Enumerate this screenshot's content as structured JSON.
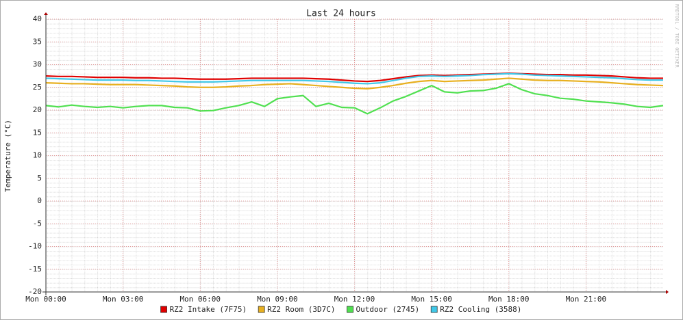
{
  "chart_data": {
    "type": "line",
    "title": "Last 24 hours",
    "y_label": "Temperature (°C)",
    "watermark": "RRDTOOL / TOBI OETIKER",
    "x": [
      0,
      0.5,
      1,
      1.5,
      2,
      2.5,
      3,
      3.5,
      4,
      4.5,
      5,
      5.5,
      6,
      6.5,
      7,
      7.5,
      8,
      8.5,
      9,
      9.5,
      10,
      10.5,
      11,
      11.5,
      12,
      12.5,
      13,
      13.5,
      14,
      14.5,
      15,
      15.5,
      16,
      16.5,
      17,
      17.5,
      18,
      18.5,
      19,
      19.5,
      20,
      20.5,
      21,
      21.5,
      22,
      22.5,
      23,
      23.5,
      24
    ],
    "xlim": [
      0,
      24
    ],
    "xticks": [
      {
        "value": 0,
        "label": "Mon 00:00"
      },
      {
        "value": 3,
        "label": "Mon 03:00"
      },
      {
        "value": 6,
        "label": "Mon 06:00"
      },
      {
        "value": 9,
        "label": "Mon 09:00"
      },
      {
        "value": 12,
        "label": "Mon 12:00"
      },
      {
        "value": 15,
        "label": "Mon 15:00"
      },
      {
        "value": 18,
        "label": "Mon 18:00"
      },
      {
        "value": 21,
        "label": "Mon 21:00"
      }
    ],
    "ylim": [
      -20,
      40
    ],
    "yticks": [
      -20,
      -15,
      -10,
      -5,
      0,
      5,
      10,
      15,
      20,
      25,
      30,
      35,
      40
    ],
    "grid": true,
    "legend": "bottom",
    "series": [
      {
        "name": "RZ2 Intake (7F75)",
        "color": "#e00000",
        "values": [
          27.5,
          27.4,
          27.4,
          27.3,
          27.2,
          27.2,
          27.2,
          27.1,
          27.1,
          27.0,
          27.0,
          26.9,
          26.8,
          26.8,
          26.8,
          26.9,
          27.0,
          27.0,
          27.0,
          27.0,
          27.0,
          26.9,
          26.8,
          26.6,
          26.4,
          26.3,
          26.5,
          26.9,
          27.3,
          27.6,
          27.7,
          27.6,
          27.7,
          27.8,
          27.9,
          28.0,
          28.1,
          28.0,
          27.9,
          27.8,
          27.8,
          27.7,
          27.7,
          27.6,
          27.5,
          27.3,
          27.1,
          27.0,
          27.0
        ]
      },
      {
        "name": "RZ2 Room (3D7C)",
        "color": "#e8b020",
        "values": [
          26.0,
          25.9,
          25.8,
          25.8,
          25.7,
          25.6,
          25.6,
          25.6,
          25.5,
          25.4,
          25.3,
          25.1,
          25.0,
          25.0,
          25.1,
          25.3,
          25.4,
          25.6,
          25.7,
          25.8,
          25.6,
          25.4,
          25.2,
          25.0,
          24.8,
          24.7,
          25.0,
          25.4,
          25.9,
          26.3,
          26.5,
          26.3,
          26.4,
          26.5,
          26.6,
          26.8,
          27.0,
          26.8,
          26.6,
          26.5,
          26.5,
          26.4,
          26.3,
          26.2,
          26.0,
          25.8,
          25.6,
          25.5,
          25.4
        ]
      },
      {
        "name": "Outdoor (2745)",
        "color": "#50e050",
        "values": [
          21.0,
          20.7,
          21.1,
          20.8,
          20.6,
          20.8,
          20.5,
          20.8,
          21.0,
          21.0,
          20.6,
          20.5,
          19.8,
          19.9,
          20.5,
          21.0,
          21.8,
          20.8,
          22.5,
          22.9,
          23.2,
          20.8,
          21.5,
          20.6,
          20.5,
          19.2,
          20.5,
          22.0,
          23.0,
          24.2,
          25.4,
          24.0,
          23.8,
          24.2,
          24.3,
          24.8,
          25.8,
          24.5,
          23.6,
          23.2,
          22.6,
          22.4,
          22.0,
          21.8,
          21.6,
          21.3,
          20.8,
          20.6,
          21.0
        ]
      },
      {
        "name": "RZ2 Cooling (3588)",
        "color": "#40c8e8",
        "values": [
          27.0,
          26.9,
          26.8,
          26.7,
          26.6,
          26.6,
          26.6,
          26.5,
          26.5,
          26.4,
          26.3,
          26.2,
          26.2,
          26.2,
          26.3,
          26.4,
          26.5,
          26.5,
          26.5,
          26.5,
          26.5,
          26.4,
          26.3,
          26.1,
          25.9,
          25.8,
          26.0,
          26.5,
          27.0,
          27.4,
          27.5,
          27.4,
          27.5,
          27.6,
          27.8,
          27.9,
          28.0,
          27.9,
          27.7,
          27.6,
          27.5,
          27.4,
          27.3,
          27.2,
          27.1,
          26.9,
          26.7,
          26.6,
          26.6
        ]
      }
    ]
  }
}
